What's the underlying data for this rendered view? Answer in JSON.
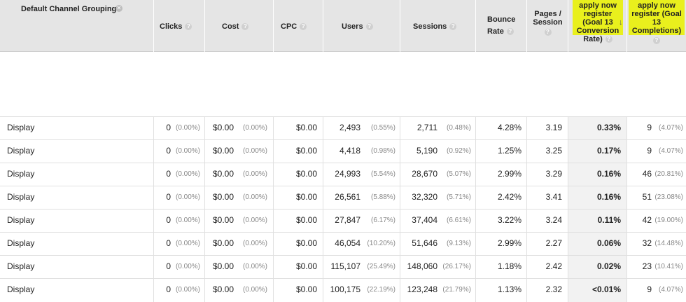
{
  "header": {
    "dimension_label": "Default Channel Grouping",
    "clicks": "Clicks",
    "cost": "Cost",
    "cpc": "CPC",
    "users": "Users",
    "sessions": "Sessions",
    "bounce_line1": "Bounce",
    "bounce_line2": "Rate",
    "pages_line1": "Pages /",
    "pages_line2": "Session",
    "goal_rate_line1": "apply now",
    "goal_rate_line2": "register",
    "goal_rate_line3": "(Goal 13",
    "goal_rate_line4": "Conversion",
    "goal_rate_line5": "Rate)",
    "goal_comp_line1": "apply now",
    "goal_comp_line2": "register (Goal",
    "goal_comp_line3": "13",
    "goal_comp_line4": "Completions)",
    "help_glyph": "?",
    "sort_glyph": "↓",
    "clear_glyph": "✕"
  },
  "colors": {
    "highlight": "#e9f01d",
    "header_bg": "#e5e5e5",
    "sorted_bg": "#f2f2f2"
  },
  "rows": [
    {
      "channel": "Display",
      "clicks": "0",
      "clicks_pct": "(0.00%)",
      "cost": "$0.00",
      "cost_pct": "(0.00%)",
      "cpc": "$0.00",
      "users": "2,493",
      "users_pct": "(0.55%)",
      "sessions": "2,711",
      "sessions_pct": "(0.48%)",
      "bounce": "4.28%",
      "pages": "3.19",
      "goal_rate": "0.33%",
      "goal_comp": "9",
      "goal_comp_pct": "(4.07%)"
    },
    {
      "channel": "Display",
      "clicks": "0",
      "clicks_pct": "(0.00%)",
      "cost": "$0.00",
      "cost_pct": "(0.00%)",
      "cpc": "$0.00",
      "users": "4,418",
      "users_pct": "(0.98%)",
      "sessions": "5,190",
      "sessions_pct": "(0.92%)",
      "bounce": "1.25%",
      "pages": "3.25",
      "goal_rate": "0.17%",
      "goal_comp": "9",
      "goal_comp_pct": "(4.07%)"
    },
    {
      "channel": "Display",
      "clicks": "0",
      "clicks_pct": "(0.00%)",
      "cost": "$0.00",
      "cost_pct": "(0.00%)",
      "cpc": "$0.00",
      "users": "24,993",
      "users_pct": "(5.54%)",
      "sessions": "28,670",
      "sessions_pct": "(5.07%)",
      "bounce": "2.99%",
      "pages": "3.29",
      "goal_rate": "0.16%",
      "goal_comp": "46",
      "goal_comp_pct": "(20.81%)"
    },
    {
      "channel": "Display",
      "clicks": "0",
      "clicks_pct": "(0.00%)",
      "cost": "$0.00",
      "cost_pct": "(0.00%)",
      "cpc": "$0.00",
      "users": "26,561",
      "users_pct": "(5.88%)",
      "sessions": "32,320",
      "sessions_pct": "(5.71%)",
      "bounce": "2.42%",
      "pages": "3.41",
      "goal_rate": "0.16%",
      "goal_comp": "51",
      "goal_comp_pct": "(23.08%)"
    },
    {
      "channel": "Display",
      "clicks": "0",
      "clicks_pct": "(0.00%)",
      "cost": "$0.00",
      "cost_pct": "(0.00%)",
      "cpc": "$0.00",
      "users": "27,847",
      "users_pct": "(6.17%)",
      "sessions": "37,404",
      "sessions_pct": "(6.61%)",
      "bounce": "3.22%",
      "pages": "3.24",
      "goal_rate": "0.11%",
      "goal_comp": "42",
      "goal_comp_pct": "(19.00%)"
    },
    {
      "channel": "Display",
      "clicks": "0",
      "clicks_pct": "(0.00%)",
      "cost": "$0.00",
      "cost_pct": "(0.00%)",
      "cpc": "$0.00",
      "users": "46,054",
      "users_pct": "(10.20%)",
      "sessions": "51,646",
      "sessions_pct": "(9.13%)",
      "bounce": "2.99%",
      "pages": "2.27",
      "goal_rate": "0.06%",
      "goal_comp": "32",
      "goal_comp_pct": "(14.48%)"
    },
    {
      "channel": "Display",
      "clicks": "0",
      "clicks_pct": "(0.00%)",
      "cost": "$0.00",
      "cost_pct": "(0.00%)",
      "cpc": "$0.00",
      "users": "115,107",
      "users_pct": "(25.49%)",
      "sessions": "148,060",
      "sessions_pct": "(26.17%)",
      "bounce": "1.18%",
      "pages": "2.42",
      "goal_rate": "0.02%",
      "goal_comp": "23",
      "goal_comp_pct": "(10.41%)"
    },
    {
      "channel": "Display",
      "clicks": "0",
      "clicks_pct": "(0.00%)",
      "cost": "$0.00",
      "cost_pct": "(0.00%)",
      "cpc": "$0.00",
      "users": "100,175",
      "users_pct": "(22.19%)",
      "sessions": "123,248",
      "sessions_pct": "(21.79%)",
      "bounce": "1.13%",
      "pages": "2.32",
      "goal_rate": "<0.01%",
      "goal_comp": "9",
      "goal_comp_pct": "(4.07%)"
    }
  ]
}
